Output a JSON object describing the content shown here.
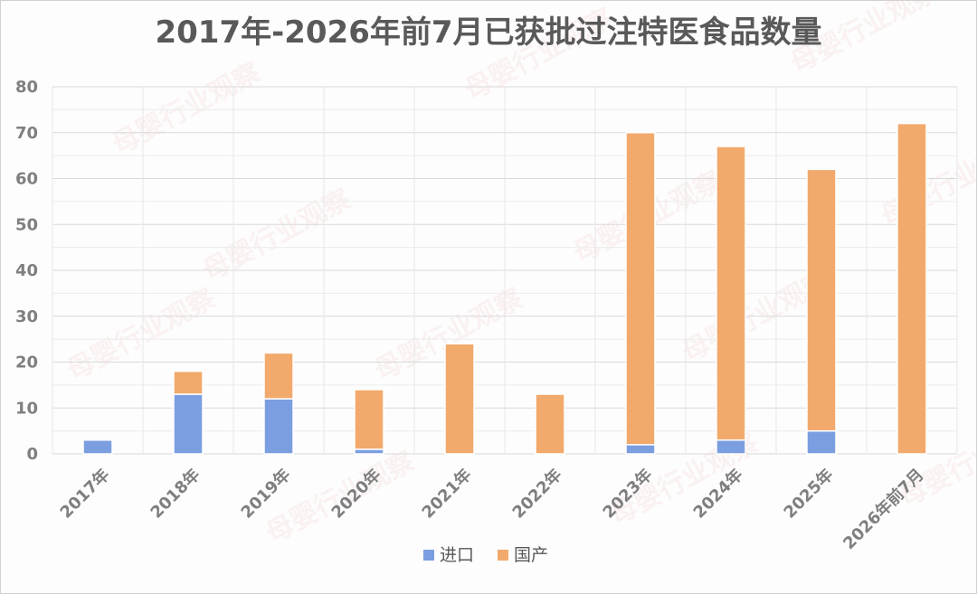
{
  "chart_data": {
    "type": "bar",
    "stacked": true,
    "title": "2017年-2026年前7月已获批过注特医食品数量",
    "categories": [
      "2017年",
      "2018年",
      "2019年",
      "2020年",
      "2021年",
      "2022年",
      "2023年",
      "2024年",
      "2025年",
      "2026年前7月"
    ],
    "series": [
      {
        "name": "进口",
        "color": "#7b9ee0",
        "values": [
          3,
          13,
          12,
          1,
          0,
          0,
          2,
          3,
          5,
          0
        ]
      },
      {
        "name": "国产",
        "color": "#f2a96c",
        "values": [
          0,
          5,
          10,
          13,
          24,
          13,
          68,
          64,
          57,
          72
        ]
      }
    ],
    "ylim": [
      0,
      80
    ],
    "yticks": [
      0,
      10,
      20,
      30,
      40,
      50,
      60,
      70,
      80
    ],
    "grid": true,
    "legend_position": "bottom"
  },
  "watermark": "母婴行业观察"
}
